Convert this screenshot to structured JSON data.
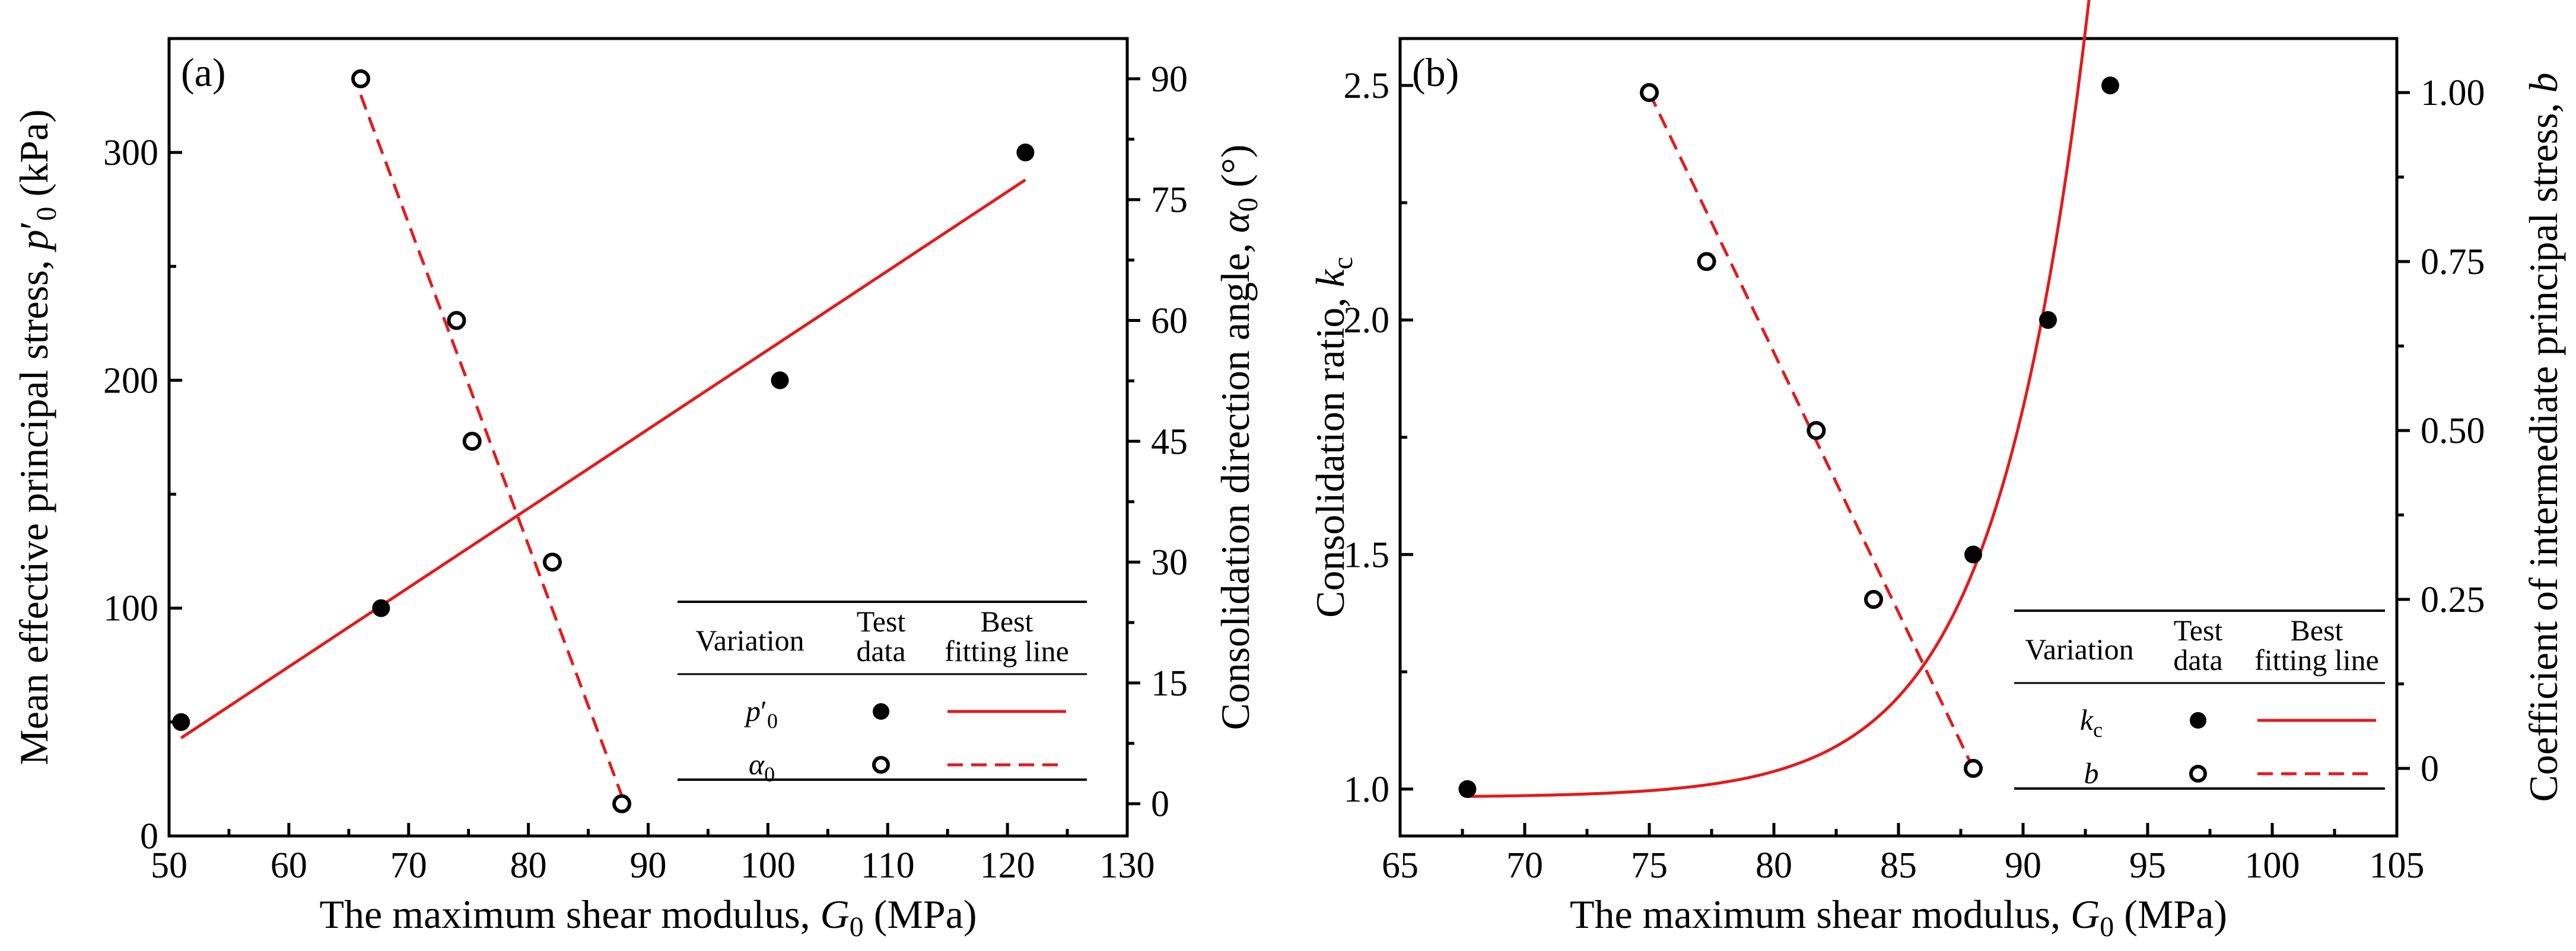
{
  "chart_data": [
    {
      "panel": "(a)",
      "type": "scatter",
      "xlabel": "The maximum shear modulus, G0 (MPa)",
      "xlabel_parts": [
        "The maximum shear modulus, ",
        "G",
        "0",
        " (MPa)"
      ],
      "xlim": [
        50,
        130
      ],
      "xticks": [
        50,
        60,
        70,
        80,
        90,
        100,
        110,
        120,
        130
      ],
      "ylabel": "Mean effective principal stress, p'0 (kPa)",
      "ylabel_parts": [
        "Mean effective principal stress, ",
        "p",
        "′",
        "0",
        " (kPa)"
      ],
      "ylim": [
        0,
        350
      ],
      "yticks": [
        0,
        100,
        200,
        300
      ],
      "y2label": "Consolidation direction angle, α0 (°)",
      "y2label_parts": [
        "Consolidation direction angle, ",
        "α",
        "0",
        " (°)"
      ],
      "y2lim": [
        -4,
        95
      ],
      "y2ticks": [
        0,
        15,
        30,
        45,
        60,
        75,
        90
      ],
      "series": [
        {
          "name": "p'0",
          "marker": "filled",
          "axis": "left",
          "x": [
            51,
            67.7,
            101,
            121.5
          ],
          "y": [
            50,
            100,
            200,
            300
          ],
          "fit": {
            "style": "solid",
            "x": [
              51,
              121.5
            ],
            "y": [
              43,
              288
            ]
          }
        },
        {
          "name": "α0",
          "marker": "open",
          "axis": "right",
          "x": [
            66,
            74,
            75.3,
            82,
            87.8
          ],
          "y": [
            90,
            60,
            45,
            30,
            0
          ],
          "fit": {
            "style": "dashed",
            "x": [
              66,
              87.8
            ],
            "y": [
              88,
              1
            ]
          }
        }
      ],
      "legend": {
        "position": "lower-right",
        "headers": [
          "Variation",
          "Test",
          "data",
          "Best",
          "fitting line"
        ],
        "rows": [
          {
            "label_parts": [
              "p",
              "′",
              "0"
            ],
            "marker": "filled",
            "line": "solid"
          },
          {
            "label_parts": [
              "α",
              "0"
            ],
            "marker": "open",
            "line": "dashed"
          }
        ]
      }
    },
    {
      "panel": "(b)",
      "type": "scatter",
      "xlabel": "The maximum shear modulus, G0 (MPa)",
      "xlabel_parts": [
        "The maximum shear modulus, ",
        "G",
        "0",
        " (MPa)"
      ],
      "xlim": [
        65,
        105
      ],
      "xticks": [
        65,
        70,
        75,
        80,
        85,
        90,
        95,
        100,
        105
      ],
      "ylabel": "Consolidation ratio, kc",
      "ylabel_parts": [
        "Consolidation ratio, ",
        "k",
        "c"
      ],
      "ylim": [
        0.9,
        2.6
      ],
      "yticks": [
        1.0,
        1.5,
        2.0,
        2.5
      ],
      "y2label": "Coefficient of intermediate principal stress, b",
      "y2label_parts": [
        "Coefficient of intermediate principal stress, ",
        "b"
      ],
      "y2lim": [
        -0.1,
        1.08
      ],
      "y2ticks": [
        0,
        0.25,
        0.5,
        0.75,
        1.0
      ],
      "series": [
        {
          "name": "kc",
          "marker": "filled",
          "axis": "left",
          "x": [
            67.7,
            88,
            91,
            93.5
          ],
          "y": [
            1.0,
            1.5,
            2.0,
            2.5
          ],
          "fit": {
            "style": "solid",
            "model": "exponential",
            "x_range": [
              67.7,
              93.7
            ],
            "a": 0.9823,
            "b": 0.00198,
            "c": 0.2708
          }
        },
        {
          "name": "b",
          "marker": "open",
          "axis": "right",
          "x": [
            75,
            77.3,
            81.7,
            84,
            88
          ],
          "y": [
            1.0,
            0.75,
            0.5,
            0.25,
            0
          ],
          "fit": {
            "style": "dashed",
            "x": [
              75,
              88
            ],
            "y": [
              1.0,
              0
            ]
          }
        }
      ],
      "legend": {
        "position": "lower-right",
        "headers": [
          "Variation",
          "Test",
          "data",
          "Best",
          "fitting line"
        ],
        "rows": [
          {
            "label_parts": [
              "k",
              "c"
            ],
            "marker": "filled",
            "line": "solid"
          },
          {
            "label_parts": [
              "b"
            ],
            "marker": "open",
            "line": "dashed"
          }
        ]
      }
    }
  ],
  "colors": {
    "axis": "#000000",
    "fit": "#e31a1c",
    "marker": "#000000"
  }
}
